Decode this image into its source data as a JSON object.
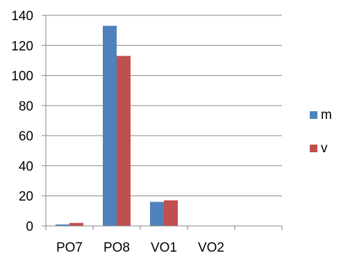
{
  "chart_data": {
    "type": "bar",
    "title": "",
    "xlabel": "",
    "ylabel": "",
    "categories": [
      "PO7",
      "PO8",
      "VO1",
      "VO2"
    ],
    "x_slots": 5,
    "series": [
      {
        "name": "m",
        "color": "#4F81BD",
        "values": [
          1,
          133,
          16,
          0
        ]
      },
      {
        "name": "v",
        "color": "#C0504D",
        "values": [
          2,
          113,
          17,
          0
        ]
      }
    ],
    "ylim": [
      0,
      140
    ],
    "yticks": [
      0,
      20,
      40,
      60,
      80,
      100,
      120,
      140
    ],
    "grid": true,
    "legend_position": "right"
  }
}
